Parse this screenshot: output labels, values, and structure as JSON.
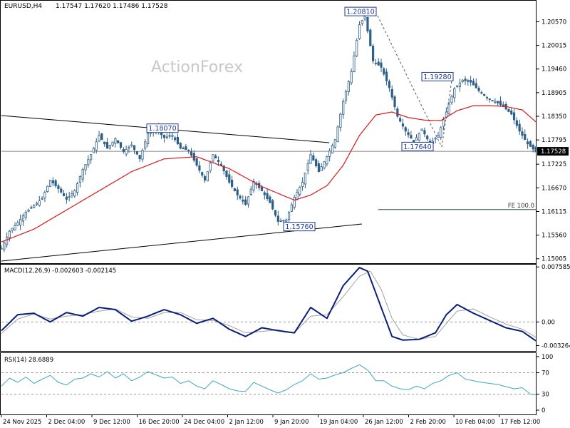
{
  "header": {
    "symbol": "EURUSD,H4",
    "ohlc": "1.17547 1.17620 1.17486 1.17528",
    "watermark": "ActionForex"
  },
  "colors": {
    "candle": "#2e5f87",
    "ma": "#d9191c",
    "trendline": "#000000",
    "macd": "#0b1f7a",
    "signal": "#a0a0a0",
    "rsi": "#3fa6c8",
    "grid_dashed": "#9a9a9a",
    "annotation": "#1f3a93"
  },
  "chart_data": [
    {
      "type": "candlestick",
      "symbol": "EURUSD",
      "timeframe": "H4",
      "y_ticks": [
        "1.20570",
        "1.20015",
        "1.19460",
        "1.18905",
        "1.18350",
        "1.17795",
        "1.17225",
        "1.16670",
        "1.16115",
        "1.15560",
        "1.15005"
      ],
      "ylim": [
        1.149,
        1.2108
      ],
      "last_price": "1.17528",
      "x_ticks": [
        "24 Nov 2025",
        "2 Dec 04:00",
        "9 Dec 12:00",
        "16 Dec 20:00",
        "24 Dec 04:00",
        "2 Jan 12:00",
        "9 Jan 20:00",
        "19 Jan 04:00",
        "26 Jan 12:00",
        "2 Feb 20:00",
        "10 Feb 04:00",
        "17 Feb 12:00"
      ],
      "annotations": [
        {
          "label": "1.20810",
          "price": 1.2081
        },
        {
          "label": "1.19280",
          "price": 1.1928
        },
        {
          "label": "1.18070",
          "price": 1.1807
        },
        {
          "label": "1.17640",
          "price": 1.1764
        },
        {
          "label": "1.15760",
          "price": 1.1576
        }
      ],
      "fe_label": "FE 100.0",
      "fe_level": 1.1616,
      "close_path": [
        [
          0,
          1.1525
        ],
        [
          3,
          1.1565
        ],
        [
          6,
          1.1585
        ],
        [
          9,
          1.161
        ],
        [
          12,
          1.1625
        ],
        [
          15,
          1.1642
        ],
        [
          18,
          1.1685
        ],
        [
          21,
          1.1665
        ],
        [
          24,
          1.164
        ],
        [
          27,
          1.166
        ],
        [
          30,
          1.171
        ],
        [
          33,
          1.1745
        ],
        [
          36,
          1.179
        ],
        [
          39,
          1.176
        ],
        [
          42,
          1.1782
        ],
        [
          45,
          1.1752
        ],
        [
          48,
          1.1768
        ],
        [
          51,
          1.1735
        ],
        [
          54,
          1.1795
        ],
        [
          57,
          1.1805
        ],
        [
          60,
          1.1785
        ],
        [
          63,
          1.179
        ],
        [
          66,
          1.176
        ],
        [
          69,
          1.1755
        ],
        [
          72,
          1.172
        ],
        [
          75,
          1.1685
        ],
        [
          78,
          1.1745
        ],
        [
          81,
          1.172
        ],
        [
          84,
          1.168
        ],
        [
          87,
          1.165
        ],
        [
          90,
          1.1628
        ],
        [
          93,
          1.1682
        ],
        [
          96,
          1.166
        ],
        [
          99,
          1.1632
        ],
        [
          102,
          1.1588
        ],
        [
          105,
          1.1592
        ],
        [
          108,
          1.1645
        ],
        [
          111,
          1.168
        ],
        [
          114,
          1.1745
        ],
        [
          117,
          1.1705
        ],
        [
          120,
          1.174
        ],
        [
          123,
          1.178
        ],
        [
          126,
          1.187
        ],
        [
          129,
          1.194
        ],
        [
          132,
          1.205
        ],
        [
          134,
          1.207
        ],
        [
          137,
          1.1965
        ],
        [
          140,
          1.195
        ],
        [
          143,
          1.1902
        ],
        [
          146,
          1.1835
        ],
        [
          149,
          1.18
        ],
        [
          152,
          1.1775
        ],
        [
          155,
          1.1805
        ],
        [
          158,
          1.177
        ],
        [
          161,
          1.179
        ],
        [
          164,
          1.1845
        ],
        [
          167,
          1.19
        ],
        [
          170,
          1.192
        ],
        [
          173,
          1.1915
        ],
        [
          176,
          1.1895
        ],
        [
          179,
          1.1878
        ],
        [
          182,
          1.187
        ],
        [
          185,
          1.1858
        ],
        [
          188,
          1.184
        ],
        [
          191,
          1.18
        ],
        [
          194,
          1.177
        ],
        [
          197,
          1.1752
        ]
      ],
      "ma_path": [
        [
          0,
          1.154
        ],
        [
          12,
          1.157
        ],
        [
          24,
          1.1615
        ],
        [
          36,
          1.166
        ],
        [
          48,
          1.1705
        ],
        [
          60,
          1.1735
        ],
        [
          72,
          1.174
        ],
        [
          84,
          1.1712
        ],
        [
          96,
          1.167
        ],
        [
          108,
          1.1638
        ],
        [
          114,
          1.165
        ],
        [
          120,
          1.1672
        ],
        [
          126,
          1.172
        ],
        [
          132,
          1.179
        ],
        [
          138,
          1.1838
        ],
        [
          144,
          1.1845
        ],
        [
          150,
          1.1832
        ],
        [
          156,
          1.1826
        ],
        [
          162,
          1.1825
        ],
        [
          168,
          1.1848
        ],
        [
          174,
          1.186
        ],
        [
          180,
          1.186
        ],
        [
          186,
          1.1858
        ],
        [
          192,
          1.185
        ],
        [
          197,
          1.1822
        ]
      ]
    },
    {
      "type": "line",
      "title": "MACD(12,26,9) -0.002603 -0.002145",
      "y_ticks": [
        "0.007585",
        "0.00",
        "-0.003264"
      ],
      "ylim": [
        -0.004,
        0.008
      ],
      "macd_path": [
        [
          0,
          -0.0012
        ],
        [
          6,
          0.001
        ],
        [
          12,
          0.0012
        ],
        [
          18,
          0.0
        ],
        [
          24,
          0.0013
        ],
        [
          30,
          0.0008
        ],
        [
          36,
          0.002
        ],
        [
          42,
          0.0017
        ],
        [
          48,
          0.0001
        ],
        [
          54,
          0.0008
        ],
        [
          60,
          0.0017
        ],
        [
          66,
          0.001
        ],
        [
          72,
          -0.0002
        ],
        [
          78,
          0.0005
        ],
        [
          84,
          -0.001
        ],
        [
          90,
          -0.002
        ],
        [
          96,
          -0.0008
        ],
        [
          102,
          -0.0012
        ],
        [
          108,
          -0.0015
        ],
        [
          114,
          0.002
        ],
        [
          120,
          0.0005
        ],
        [
          126,
          0.005
        ],
        [
          132,
          0.0075
        ],
        [
          135,
          0.007
        ],
        [
          140,
          0.002
        ],
        [
          144,
          -0.002
        ],
        [
          148,
          -0.0025
        ],
        [
          154,
          -0.0024
        ],
        [
          160,
          -0.0015
        ],
        [
          164,
          0.001
        ],
        [
          168,
          0.0024
        ],
        [
          174,
          0.0012
        ],
        [
          180,
          0.0002
        ],
        [
          186,
          -0.0008
        ],
        [
          192,
          -0.0013
        ],
        [
          197,
          -0.0026
        ]
      ],
      "signal_path": [
        [
          0,
          -0.0016
        ],
        [
          6,
          0.0004
        ],
        [
          12,
          0.0011
        ],
        [
          18,
          0.0004
        ],
        [
          24,
          0.0008
        ],
        [
          30,
          0.001
        ],
        [
          36,
          0.0015
        ],
        [
          42,
          0.0018
        ],
        [
          48,
          0.0007
        ],
        [
          54,
          0.0005
        ],
        [
          60,
          0.0013
        ],
        [
          66,
          0.0013
        ],
        [
          72,
          0.0003
        ],
        [
          78,
          0.0002
        ],
        [
          84,
          -0.0005
        ],
        [
          90,
          -0.0015
        ],
        [
          96,
          -0.0013
        ],
        [
          102,
          -0.0011
        ],
        [
          108,
          -0.0015
        ],
        [
          114,
          0.0008
        ],
        [
          120,
          0.001
        ],
        [
          126,
          0.0035
        ],
        [
          132,
          0.0063
        ],
        [
          136,
          0.007
        ],
        [
          140,
          0.0045
        ],
        [
          144,
          0.0005
        ],
        [
          148,
          -0.0018
        ],
        [
          154,
          -0.0024
        ],
        [
          160,
          -0.002
        ],
        [
          164,
          -0.0002
        ],
        [
          168,
          0.0015
        ],
        [
          174,
          0.0018
        ],
        [
          180,
          0.0007
        ],
        [
          186,
          -0.0003
        ],
        [
          192,
          -0.001
        ],
        [
          197,
          -0.0021
        ]
      ]
    },
    {
      "type": "line",
      "title": "RSI(14) 28.6889",
      "y_ticks": [
        "100",
        "70",
        "30",
        "0"
      ],
      "ylim": [
        0,
        100
      ],
      "rsi_path": [
        [
          0,
          45
        ],
        [
          3,
          60
        ],
        [
          6,
          52
        ],
        [
          9,
          62
        ],
        [
          12,
          50
        ],
        [
          15,
          58
        ],
        [
          18,
          65
        ],
        [
          21,
          52
        ],
        [
          24,
          47
        ],
        [
          27,
          58
        ],
        [
          30,
          60
        ],
        [
          33,
          68
        ],
        [
          36,
          62
        ],
        [
          39,
          72
        ],
        [
          42,
          60
        ],
        [
          45,
          68
        ],
        [
          48,
          55
        ],
        [
          51,
          62
        ],
        [
          54,
          72
        ],
        [
          57,
          66
        ],
        [
          60,
          60
        ],
        [
          63,
          62
        ],
        [
          66,
          50
        ],
        [
          69,
          55
        ],
        [
          72,
          45
        ],
        [
          75,
          40
        ],
        [
          78,
          55
        ],
        [
          81,
          48
        ],
        [
          84,
          40
        ],
        [
          87,
          36
        ],
        [
          90,
          35
        ],
        [
          93,
          52
        ],
        [
          96,
          45
        ],
        [
          99,
          38
        ],
        [
          102,
          32
        ],
        [
          105,
          38
        ],
        [
          108,
          48
        ],
        [
          111,
          55
        ],
        [
          114,
          68
        ],
        [
          117,
          58
        ],
        [
          120,
          60
        ],
        [
          123,
          66
        ],
        [
          126,
          70
        ],
        [
          129,
          78
        ],
        [
          132,
          85
        ],
        [
          135,
          75
        ],
        [
          138,
          55
        ],
        [
          141,
          55
        ],
        [
          144,
          45
        ],
        [
          147,
          40
        ],
        [
          150,
          38
        ],
        [
          153,
          45
        ],
        [
          156,
          40
        ],
        [
          159,
          50
        ],
        [
          162,
          55
        ],
        [
          165,
          65
        ],
        [
          168,
          70
        ],
        [
          171,
          58
        ],
        [
          174,
          55
        ],
        [
          177,
          52
        ],
        [
          180,
          50
        ],
        [
          183,
          48
        ],
        [
          186,
          44
        ],
        [
          189,
          40
        ],
        [
          192,
          42
        ],
        [
          195,
          30
        ],
        [
          197,
          29
        ]
      ]
    }
  ]
}
